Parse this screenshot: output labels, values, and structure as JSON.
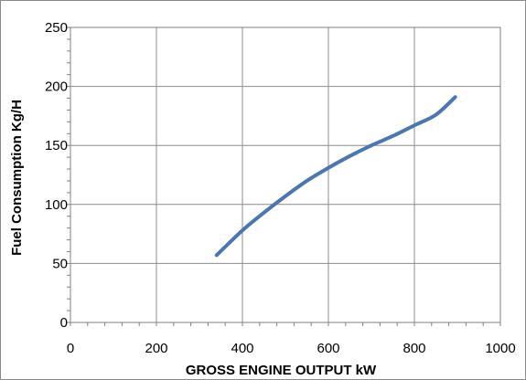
{
  "chart_data": {
    "type": "line",
    "title": "",
    "xlabel": "GROSS ENGINE OUTPUT  kW",
    "ylabel": "Fuel Consumption Kg/H",
    "xlim": [
      0,
      1000
    ],
    "ylim": [
      0,
      250
    ],
    "x_ticks": [
      "0",
      "200",
      "400",
      "600",
      "800",
      "1000"
    ],
    "y_ticks": [
      "0",
      "50",
      "100",
      "150",
      "200",
      "250"
    ],
    "grid": true,
    "legend": "none",
    "series_color": "#4a76b1",
    "series": [
      {
        "x": [
          340,
          400,
          450,
          500,
          550,
          600,
          650,
          700,
          750,
          800,
          850,
          895
        ],
        "y": [
          57,
          78,
          93,
          107,
          120,
          131,
          141,
          150,
          158,
          167,
          176,
          191
        ]
      }
    ]
  }
}
